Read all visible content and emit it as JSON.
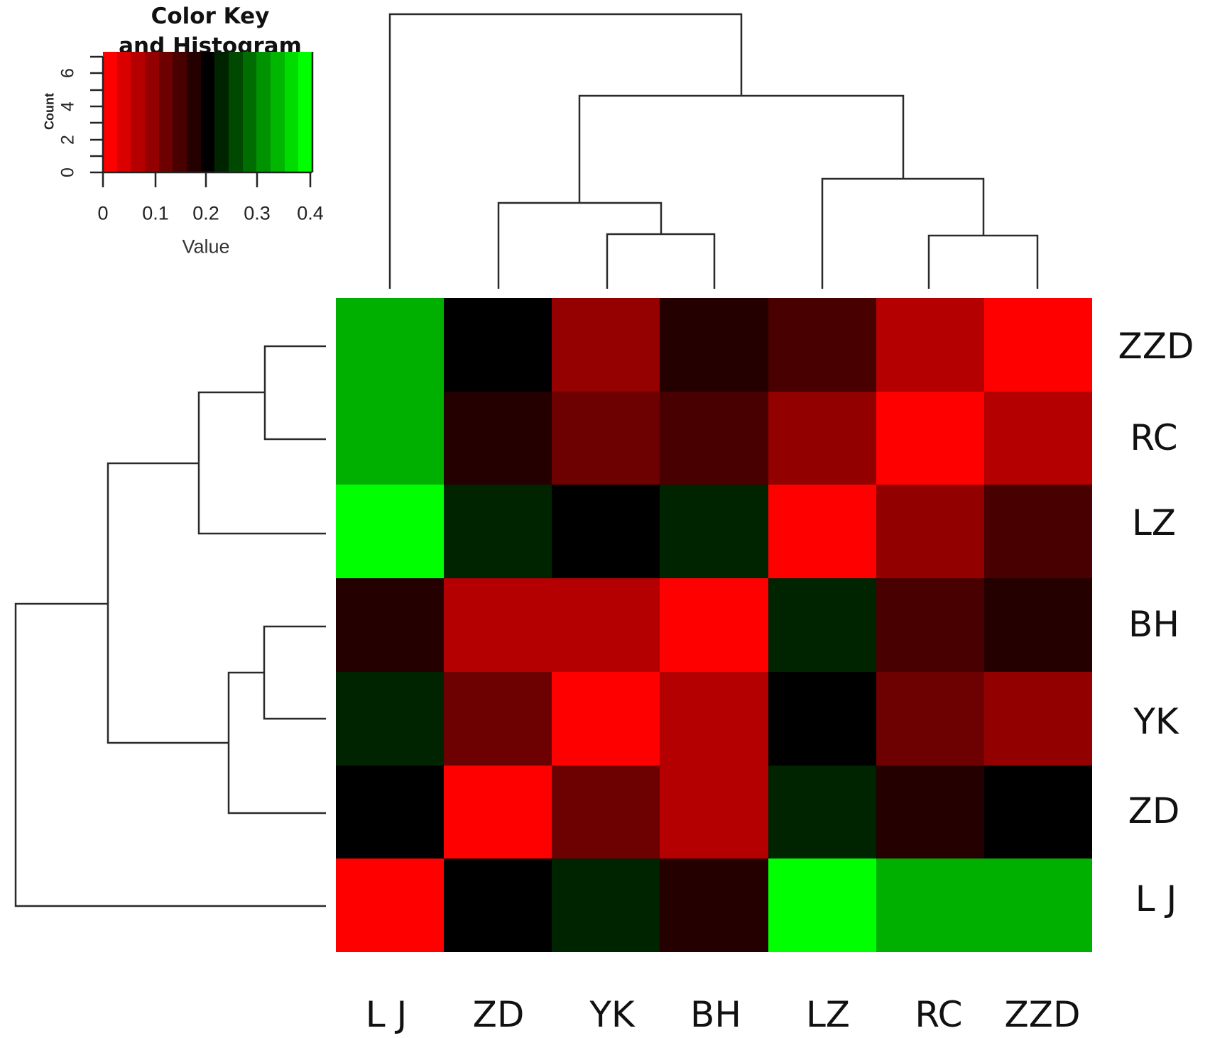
{
  "chart_data": {
    "type": "heatmap",
    "title": "",
    "row_labels": [
      "ZZD",
      "RC",
      "LZ",
      "BH",
      "YK",
      "ZD",
      "L J"
    ],
    "col_labels": [
      "L J",
      "ZD",
      "YK",
      "BH",
      "LZ",
      "RC",
      "ZZD"
    ],
    "cell_colors": [
      [
        "#00b000",
        "#000000",
        "#950000",
        "#240000",
        "#490000",
        "#b40000",
        "#ff0000"
      ],
      [
        "#00b000",
        "#240000",
        "#6d0000",
        "#490000",
        "#920000",
        "#ff0000",
        "#b40000"
      ],
      [
        "#00ff00",
        "#002400",
        "#000000",
        "#002400",
        "#ff0000",
        "#920000",
        "#490000"
      ],
      [
        "#240000",
        "#b40000",
        "#b40000",
        "#ff0000",
        "#002400",
        "#490000",
        "#240000"
      ],
      [
        "#002400",
        "#6d0000",
        "#ff0000",
        "#b40000",
        "#000000",
        "#6d0000",
        "#920000"
      ],
      [
        "#000000",
        "#ff0000",
        "#6d0000",
        "#b40000",
        "#002400",
        "#240000",
        "#000000"
      ],
      [
        "#ff0000",
        "#000000",
        "#002400",
        "#240000",
        "#00ff00",
        "#00b000",
        "#00b000"
      ]
    ],
    "values": [
      [
        0.36,
        0.19,
        0.07,
        0.16,
        0.13,
        0.05,
        0.01
      ],
      [
        0.36,
        0.16,
        0.1,
        0.13,
        0.08,
        0.01,
        0.05
      ],
      [
        0.4,
        0.22,
        0.19,
        0.22,
        0.01,
        0.08,
        0.13
      ],
      [
        0.16,
        0.05,
        0.05,
        0.01,
        0.22,
        0.13,
        0.16
      ],
      [
        0.22,
        0.1,
        0.01,
        0.05,
        0.19,
        0.1,
        0.08
      ],
      [
        0.19,
        0.01,
        0.1,
        0.05,
        0.22,
        0.16,
        0.19
      ],
      [
        0.01,
        0.19,
        0.22,
        0.16,
        0.4,
        0.36,
        0.36
      ]
    ],
    "color_key": {
      "title": "Color Key\nand Histogram",
      "xlabel": "Value",
      "ylabel": "Count",
      "x_ticks": [
        "0",
        "0.1",
        "0.2",
        "0.3",
        "0.4"
      ],
      "y_ticks": [
        "0",
        "2",
        "4",
        "6"
      ],
      "xlim": [
        0,
        0.4
      ],
      "ylim": [
        0,
        7
      ],
      "bands": [
        "#ff0000",
        "#db0000",
        "#b60000",
        "#920000",
        "#6d0000",
        "#490000",
        "#240000",
        "#000000",
        "#002400",
        "#004900",
        "#006d00",
        "#009200",
        "#00b600",
        "#00db00",
        "#00ff00"
      ]
    },
    "column_dendrogram": "(L J, ((ZD, (YK, BH)), (LZ, (RC, ZZD))))",
    "row_dendrogram": "(((ZZD, RC), LZ), ((BH, YK), ZD), L J)"
  },
  "key": {
    "title_line1": "Color Key",
    "title_line2": "and Histogram",
    "xlabel": "Value",
    "ylabel": "Count",
    "x_ticks": [
      "0",
      "0.1",
      "0.2",
      "0.3",
      "0.4"
    ],
    "y_ticks": [
      "0",
      "2",
      "4",
      "6"
    ]
  },
  "rows": [
    "ZZD",
    "RC",
    "LZ",
    "BH",
    "YK",
    "ZD",
    "L J"
  ],
  "cols": [
    "L J",
    "ZD",
    "YK",
    "BH",
    "LZ",
    "RC",
    "ZZD"
  ]
}
